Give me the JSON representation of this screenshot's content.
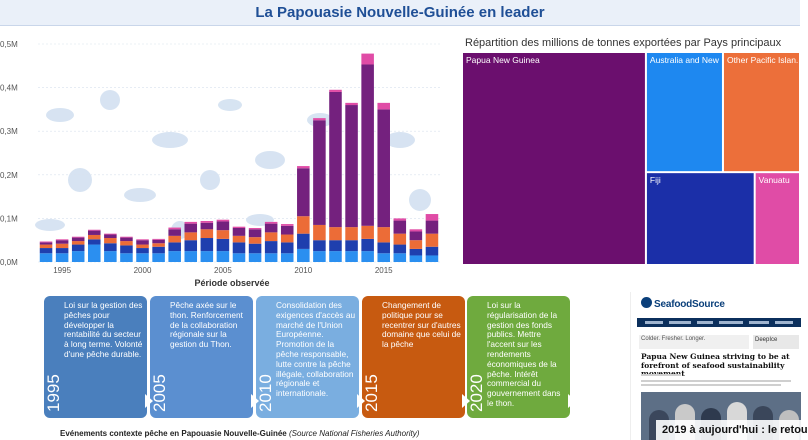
{
  "header": {
    "title": "La Papouasie Nouvelle-Guinée en leader"
  },
  "chart_data": [
    {
      "type": "bar",
      "stacked": true,
      "title": "",
      "xlabel": "Période observée",
      "ylabel": "",
      "x": [
        1994,
        1995,
        1996,
        1997,
        1998,
        1999,
        2000,
        2001,
        2002,
        2003,
        2004,
        2005,
        2006,
        2007,
        2008,
        2009,
        2010,
        2011,
        2012,
        2013,
        2014,
        2015,
        2016,
        2017,
        2018
      ],
      "xticks": [
        1995,
        2000,
        2005,
        2010,
        2015
      ],
      "ylim": [
        0,
        0.5
      ],
      "yticks": [
        "0,0M",
        "0,1M",
        "0,2M",
        "0,3M",
        "0,4M",
        "0,5M"
      ],
      "ytick_values": [
        0,
        0.1,
        0.2,
        0.3,
        0.4,
        0.5
      ],
      "grid": true,
      "series": [
        {
          "color": "#2b8ff0",
          "values": [
            0.02,
            0.02,
            0.025,
            0.04,
            0.025,
            0.02,
            0.02,
            0.02,
            0.025,
            0.025,
            0.025,
            0.025,
            0.02,
            0.02,
            0.02,
            0.02,
            0.03,
            0.025,
            0.025,
            0.025,
            0.025,
            0.02,
            0.02,
            0.015,
            0.015
          ]
        },
        {
          "color": "#1f3fae",
          "values": [
            0.012,
            0.012,
            0.015,
            0.012,
            0.018,
            0.018,
            0.012,
            0.015,
            0.02,
            0.025,
            0.03,
            0.028,
            0.025,
            0.022,
            0.028,
            0.025,
            0.035,
            0.025,
            0.025,
            0.025,
            0.028,
            0.025,
            0.02,
            0.015,
            0.02
          ]
        },
        {
          "color": "#ec6c37",
          "values": [
            0.008,
            0.01,
            0.008,
            0.01,
            0.012,
            0.01,
            0.008,
            0.008,
            0.015,
            0.018,
            0.02,
            0.02,
            0.015,
            0.015,
            0.02,
            0.018,
            0.04,
            0.035,
            0.03,
            0.03,
            0.03,
            0.035,
            0.025,
            0.02,
            0.03
          ]
        },
        {
          "color": "#74217e",
          "values": [
            0.005,
            0.008,
            0.008,
            0.01,
            0.008,
            0.008,
            0.01,
            0.008,
            0.015,
            0.02,
            0.015,
            0.02,
            0.018,
            0.018,
            0.02,
            0.02,
            0.11,
            0.24,
            0.31,
            0.28,
            0.37,
            0.27,
            0.03,
            0.02,
            0.03
          ]
        },
        {
          "color": "#e04ca6",
          "values": [
            0.002,
            0.002,
            0.002,
            0.002,
            0.002,
            0.002,
            0.002,
            0.002,
            0.004,
            0.004,
            0.004,
            0.004,
            0.003,
            0.003,
            0.004,
            0.004,
            0.005,
            0.005,
            0.005,
            0.005,
            0.025,
            0.015,
            0.005,
            0.005,
            0.015
          ]
        }
      ]
    },
    {
      "type": "treemap",
      "title": "Répartition des millions de tonnes exportées par Pays principaux",
      "items": [
        {
          "label": "Papua New Guinea",
          "value": 0.55,
          "color": "#6b0f6e"
        },
        {
          "label": "Australia and New ...",
          "value": 0.11,
          "color": "#1e88f0"
        },
        {
          "label": "Other Pacific Islan...",
          "value": 0.11,
          "color": "#ec6f3a"
        },
        {
          "label": "Fiji",
          "value": 0.12,
          "color": "#1b2fa8"
        },
        {
          "label": "Vanuatu",
          "value": 0.05,
          "color": "#e04ca6"
        }
      ]
    }
  ],
  "timeline": {
    "cards": [
      {
        "year": "1995",
        "text": "Loi sur la gestion des pêches pour développer la rentabilité du secteur à long terme. Volonté d'une pêche durable.",
        "color": "#4a7fbd"
      },
      {
        "year": "2005",
        "text": "Pêche axée sur le thon. Renforcement de la collaboration régionale sur la gestion du Thon.",
        "color": "#5b8fd0"
      },
      {
        "year": "2010",
        "text": "Consolidation des exigences d'accès au marché de l'Union Européenne. Promotion de la pêche responsable, lutte contre la pêche illégale, collaboration régionale et internationale.",
        "color": "#7aaee0"
      },
      {
        "year": "2015",
        "text": "Changement de politique pour se recentrer sur d'autres domaine que celui de la pêche",
        "color": "#c75a10"
      },
      {
        "year": "2020",
        "text": "Loi sur la régularisation de la gestion des fonds publics. Mettre l'accent sur les rendements économiques de la pêche. Intérêt commercial du gouvernement dans le thon.",
        "color": "#6faa3e"
      }
    ],
    "caption": "Evénements contexte pêche en Papouasie Nouvelle-Guinée",
    "caption_source": "(Source National  Fisheries Authority)"
  },
  "article": {
    "logo": "SeafoodSource",
    "ad_text": "Colder. Fresher. Longer.",
    "ad_brand": "DeepIce",
    "headline": "Papua New Guinea striving to be at forefront of seafood sustainability movement",
    "banner": "2019 à aujourd'hui : le retou"
  }
}
